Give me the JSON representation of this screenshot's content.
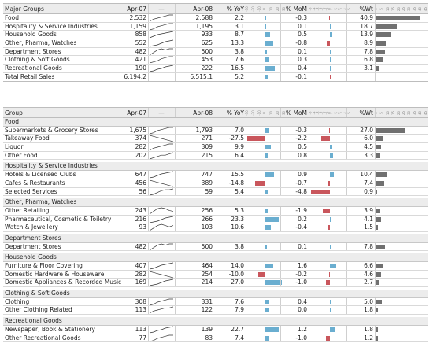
{
  "colors": {
    "pos": "#6aaed0",
    "neg": "#c9565c",
    "wt": "#707070"
  },
  "scales": {
    "yoy": [
      -30,
      30
    ],
    "mom": [
      -5,
      5
    ],
    "wt": [
      0,
      45
    ]
  },
  "yoy_ticks": [
    "-30",
    "-20",
    "-10",
    "0",
    "10",
    "20",
    "30"
  ],
  "mom_ticks": [
    "-5",
    "-4",
    "-3",
    "-2",
    "-1",
    "0",
    "1",
    "2",
    "3",
    "4",
    "5"
  ],
  "wt_ticks": [
    "0",
    "5",
    "10",
    "15",
    "20",
    "25",
    "30",
    "35",
    "40",
    "45"
  ],
  "chart_data": [
    {
      "type": "table",
      "headers": {
        "group": "Major Groups",
        "apr07": "Apr-07",
        "spark": "—",
        "apr08": "Apr-08",
        "yoy": "% YoY",
        "mom": "% MoM",
        "wt": "%Wt"
      },
      "rows": [
        {
          "name": "Food",
          "apr07": "2,532",
          "apr08": "2,588",
          "yoy": 2.2,
          "yoy_s": "2.2",
          "mom": -0.3,
          "mom_s": "-0.3",
          "wt": 40.9,
          "wt_s": "40.9",
          "spark": [
            2,
            4,
            5,
            6,
            7,
            8,
            8
          ]
        },
        {
          "name": "Hospitality & Service Industries",
          "apr07": "1,159",
          "apr08": "1,195",
          "yoy": 3.1,
          "yoy_s": "3.1",
          "mom": 0.1,
          "mom_s": "0.1",
          "wt": 18.7,
          "wt_s": "18.7",
          "spark": [
            2,
            3,
            5,
            6,
            7,
            8,
            8
          ]
        },
        {
          "name": "Household Goods",
          "apr07": "858",
          "apr08": "933",
          "yoy": 8.7,
          "yoy_s": "8.7",
          "mom": 0.5,
          "mom_s": "0.5",
          "wt": 13.9,
          "wt_s": "13.9",
          "spark": [
            1,
            3,
            5,
            6,
            7,
            8,
            9
          ]
        },
        {
          "name": "Other, Pharma, Watches",
          "apr07": "552",
          "apr08": "625",
          "yoy": 13.3,
          "yoy_s": "13.3",
          "mom": -0.8,
          "mom_s": "-0.8",
          "wt": 8.9,
          "wt_s": "8.9",
          "spark": [
            1,
            2,
            3,
            5,
            7,
            8,
            9
          ]
        },
        {
          "name": "Department Stores",
          "apr07": "482",
          "apr08": "500",
          "yoy": 3.8,
          "yoy_s": "3.8",
          "mom": 0.1,
          "mom_s": "0.1",
          "wt": 7.8,
          "wt_s": "7.8",
          "spark": [
            3,
            5,
            7,
            8,
            7,
            8,
            8
          ]
        },
        {
          "name": "Clothing & Soft Goods",
          "apr07": "421",
          "apr08": "453",
          "yoy": 7.6,
          "yoy_s": "7.6",
          "mom": 0.3,
          "mom_s": "0.3",
          "wt": 6.8,
          "wt_s": "6.8",
          "spark": [
            2,
            3,
            4,
            6,
            7,
            8,
            8
          ]
        },
        {
          "name": "Recreational Goods",
          "apr07": "190",
          "apr08": "222",
          "yoy": 16.5,
          "yoy_s": "16.5",
          "mom": 0.4,
          "mom_s": "0.4",
          "wt": 3.1,
          "wt_s": "3.1",
          "spark": [
            1,
            2,
            4,
            5,
            7,
            8,
            9
          ]
        },
        {
          "name": "Total Retail Sales",
          "apr07": "6,194.2",
          "apr08": "6,515.1",
          "yoy": 5.2,
          "yoy_s": "5.2",
          "mom": -0.1,
          "mom_s": "-0.1",
          "wt": null,
          "wt_s": "",
          "spark": null
        }
      ]
    },
    {
      "type": "table",
      "headers": {
        "group": "Group",
        "apr07": "Apr-07",
        "spark": "—",
        "apr08": "Apr-08",
        "yoy": "% YoY",
        "mom": "% MoM",
        "wt": "%Wt"
      },
      "sections": [
        {
          "title": "Food",
          "rows": [
            {
              "name": "Supermarkets & Grocery Stores",
              "apr07": "1,675",
              "apr08": "1,793",
              "yoy": 7.0,
              "yoy_s": "7.0",
              "mom": -0.3,
              "mom_s": "-0.3",
              "wt": 27.0,
              "wt_s": "27.0",
              "spark": [
                2,
                3,
                5,
                6,
                7,
                8,
                8
              ]
            },
            {
              "name": "Takeaway Food",
              "apr07": "374",
              "apr08": "271",
              "yoy": -27.5,
              "yoy_s": "-27.5",
              "mom": -2.2,
              "mom_s": "-2.2",
              "wt": 6.0,
              "wt_s": "6.0",
              "spark": [
                8,
                7,
                6,
                5,
                4,
                3,
                2
              ]
            },
            {
              "name": "Liquor",
              "apr07": "282",
              "apr08": "309",
              "yoy": 9.9,
              "yoy_s": "9.9",
              "mom": 0.5,
              "mom_s": "0.5",
              "wt": 4.5,
              "wt_s": "4.5",
              "spark": [
                2,
                4,
                5,
                6,
                7,
                8,
                8
              ]
            },
            {
              "name": "Other Food",
              "apr07": "202",
              "apr08": "215",
              "yoy": 6.4,
              "yoy_s": "6.4",
              "mom": 0.8,
              "mom_s": "0.8",
              "wt": 3.3,
              "wt_s": "3.3",
              "spark": [
                3,
                4,
                5,
                6,
                6,
                7,
                8
              ]
            }
          ]
        },
        {
          "title": "Hospitality & Service Industries",
          "rows": [
            {
              "name": "Hotels & Licensed Clubs",
              "apr07": "647",
              "apr08": "747",
              "yoy": 15.5,
              "yoy_s": "15.5",
              "mom": 0.9,
              "mom_s": "0.9",
              "wt": 10.4,
              "wt_s": "10.4",
              "spark": [
                1,
                2,
                4,
                6,
                7,
                8,
                9
              ]
            },
            {
              "name": "Cafes & Restaurants",
              "apr07": "456",
              "apr08": "389",
              "yoy": -14.8,
              "yoy_s": "-14.8",
              "mom": -0.7,
              "mom_s": "-0.7",
              "wt": 7.4,
              "wt_s": "7.4",
              "spark": [
                8,
                7,
                6,
                5,
                4,
                3,
                2
              ]
            },
            {
              "name": "Selected Services",
              "apr07": "56",
              "apr08": "59",
              "yoy": 5.4,
              "yoy_s": "5.4",
              "mom": -4.8,
              "mom_s": "-4.8",
              "wt": 0.9,
              "wt_s": "0.9",
              "spark": [
                2,
                3,
                5,
                7,
                8,
                8,
                9
              ]
            }
          ]
        },
        {
          "title": "Other, Pharma, Watches",
          "rows": [
            {
              "name": "Other Retailing",
              "apr07": "243",
              "apr08": "256",
              "yoy": 5.3,
              "yoy_s": "5.3",
              "mom": -1.9,
              "mom_s": "-1.9",
              "wt": 3.9,
              "wt_s": "3.9",
              "spark": [
                2,
                5,
                8,
                9,
                8,
                6,
                5
              ]
            },
            {
              "name": "Pharmaceutical, Cosmetic & Toiletry",
              "apr07": "216",
              "apr08": "266",
              "yoy": 23.3,
              "yoy_s": "23.3",
              "mom": 0.2,
              "mom_s": "0.2",
              "wt": 4.1,
              "wt_s": "4.1",
              "spark": [
                1,
                2,
                3,
                5,
                7,
                8,
                9
              ]
            },
            {
              "name": "Watch & Jewellery",
              "apr07": "93",
              "apr08": "103",
              "yoy": 10.6,
              "yoy_s": "10.6",
              "mom": -0.4,
              "mom_s": "-0.4",
              "wt": 1.5,
              "wt_s": "1.5",
              "spark": [
                3,
                5,
                7,
                8,
                7,
                6,
                7
              ]
            }
          ]
        },
        {
          "title": "Department Stores",
          "rows": [
            {
              "name": "Department Stores",
              "apr07": "482",
              "apr08": "500",
              "yoy": 3.8,
              "yoy_s": "3.8",
              "mom": 0.1,
              "mom_s": "0.1",
              "wt": 7.8,
              "wt_s": "7.8",
              "spark": [
                3,
                5,
                7,
                8,
                7,
                8,
                8
              ]
            }
          ]
        },
        {
          "title": "Household Goods",
          "rows": [
            {
              "name": "Furniture & Floor Covering",
              "apr07": "407",
              "apr08": "464",
              "yoy": 14.0,
              "yoy_s": "14.0",
              "mom": 1.6,
              "mom_s": "1.6",
              "wt": 6.6,
              "wt_s": "6.6",
              "spark": [
                1,
                2,
                4,
                6,
                7,
                8,
                9
              ]
            },
            {
              "name": "Domestic Hardware & Houseware",
              "apr07": "282",
              "apr08": "254",
              "yoy": -10.0,
              "yoy_s": "-10.0",
              "mom": -0.2,
              "mom_s": "-0.2",
              "wt": 4.6,
              "wt_s": "4.6",
              "spark": [
                8,
                7,
                6,
                5,
                4,
                3,
                2
              ]
            },
            {
              "name": "Domestic Appliances & Recorded Music",
              "apr07": "169",
              "apr08": "214",
              "yoy": 27.0,
              "yoy_s": "27.0",
              "mom": -1.0,
              "mom_s": "-1.0",
              "wt": 2.7,
              "wt_s": "2.7",
              "spark": [
                1,
                2,
                3,
                5,
                7,
                8,
                9
              ]
            }
          ]
        },
        {
          "title": "Clothing & Soft Goods",
          "rows": [
            {
              "name": "Clothing",
              "apr07": "308",
              "apr08": "331",
              "yoy": 7.6,
              "yoy_s": "7.6",
              "mom": 0.4,
              "mom_s": "0.4",
              "wt": 5.0,
              "wt_s": "5.0",
              "spark": [
                2,
                3,
                5,
                6,
                7,
                8,
                8
              ]
            },
            {
              "name": "Other Clothing Related",
              "apr07": "113",
              "apr08": "122",
              "yoy": 7.9,
              "yoy_s": "7.9",
              "mom": 0.0,
              "mom_s": "0.0",
              "wt": 1.8,
              "wt_s": "1.8",
              "spark": [
                2,
                4,
                5,
                6,
                7,
                7,
                8
              ]
            }
          ]
        },
        {
          "title": "Recreational Goods",
          "rows": [
            {
              "name": "Newspaper, Book & Stationery",
              "apr07": "113",
              "apr08": "139",
              "yoy": 22.7,
              "yoy_s": "22.7",
              "mom": 1.2,
              "mom_s": "1.2",
              "wt": 1.8,
              "wt_s": "1.8",
              "spark": [
                1,
                2,
                4,
                5,
                7,
                8,
                9
              ]
            },
            {
              "name": "Other Recreational Goods",
              "apr07": "77",
              "apr08": "83",
              "yoy": 7.4,
              "yoy_s": "7.4",
              "mom": -1.0,
              "mom_s": "-1.0",
              "wt": 1.2,
              "wt_s": "1.2",
              "spark": [
                2,
                3,
                5,
                6,
                7,
                8,
                8
              ]
            }
          ]
        }
      ]
    }
  ]
}
